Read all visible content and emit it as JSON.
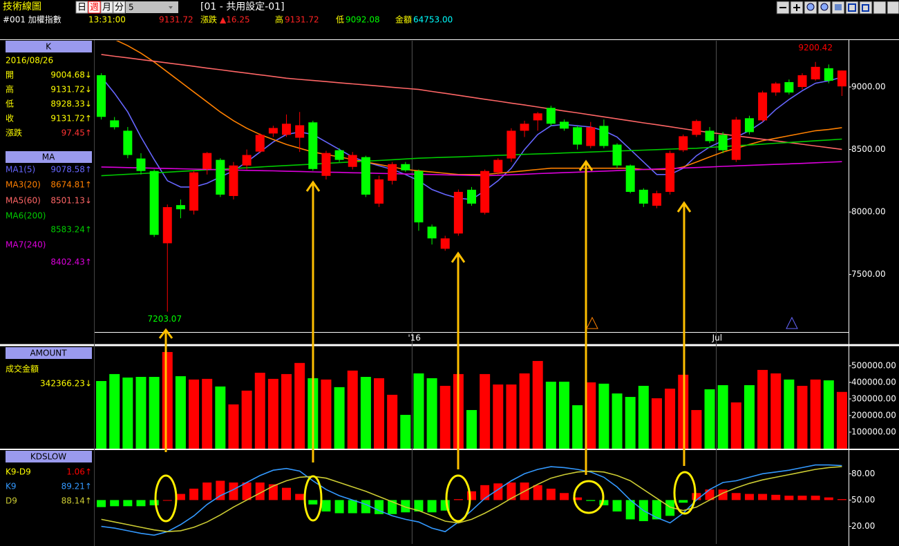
{
  "header": {
    "title": "技術線圖",
    "periods": [
      "日",
      "週",
      "月",
      "分"
    ],
    "period_count": "5",
    "layout_name": "[01 - 共用設定-01]"
  },
  "quote": {
    "symbol": "#001 加權指數",
    "time": "13:31:00",
    "price": "9131.72",
    "change_label": "漲跌",
    "change": "▲16.25",
    "high_label": "高",
    "high": "9131.72",
    "low_label": "低",
    "low": "9092.08",
    "amount_label": "金額",
    "amount": "64753.00"
  },
  "panel": {
    "k_title": "K",
    "date": "2016/08/26",
    "ohlc": [
      {
        "label": "開",
        "value": "9004.68↓"
      },
      {
        "label": "高",
        "value": "9131.72↓"
      },
      {
        "label": "低",
        "value": "8928.33↓"
      },
      {
        "label": "收",
        "value": "9131.72↑"
      },
      {
        "label": "漲跌",
        "value": "97.45↑"
      }
    ],
    "ma_title": "MA",
    "amount_title": "AMOUNT",
    "amount_label": "成交金額",
    "amount_value": "342366.23↓",
    "kd_title": "KDSLOW"
  },
  "chart_data": [
    {
      "type": "candlestick",
      "categories": [
        null,
        null,
        null,
        null,
        null,
        null,
        null,
        null,
        null,
        null,
        null,
        null,
        null,
        null,
        null,
        null,
        null,
        null,
        null,
        null,
        null,
        null,
        null,
        null,
        "'16",
        null,
        null,
        null,
        null,
        null,
        null,
        null,
        null,
        null,
        null,
        null,
        null,
        null,
        null,
        null,
        null,
        null,
        null,
        null,
        null,
        null,
        null,
        "Jul",
        null,
        null,
        null,
        null,
        null,
        null,
        null,
        null,
        null
      ],
      "open": [
        9094,
        8733,
        8650,
        8428,
        8328,
        7750,
        8055,
        8011,
        8344,
        8417,
        8128,
        8372,
        8483,
        8628,
        8617,
        8594,
        8717,
        8289,
        8494,
        8361,
        8439,
        8067,
        8250,
        8383,
        8328,
        7883,
        7706,
        7828,
        8178,
        7994,
        8317,
        8428,
        8650,
        8733,
        8833,
        8722,
        8678,
        8528,
        8689,
        8539,
        8372,
        8178,
        8050,
        8161,
        8494,
        8617,
        8650,
        8617,
        8417,
        8750,
        8733,
        8956,
        9039,
        9000,
        9061,
        9150,
        9004.68
      ],
      "high": [
        9110,
        8760,
        8680,
        8470,
        8340,
        8060,
        8100,
        8330,
        8480,
        8430,
        8400,
        8500,
        8630,
        8690,
        8780,
        8800,
        8730,
        8490,
        8510,
        8480,
        8450,
        8290,
        8400,
        8400,
        8340,
        7900,
        7810,
        8180,
        8200,
        8340,
        8430,
        8670,
        8730,
        8800,
        8850,
        8740,
        8690,
        8720,
        8740,
        8550,
        8380,
        8190,
        8170,
        8490,
        8620,
        8740,
        8680,
        8640,
        8760,
        8770,
        8970,
        9040,
        9060,
        9110,
        9200.42,
        9180,
        9131.72
      ],
      "low": [
        8740,
        8660,
        8430,
        8300,
        7800,
        7203.07,
        7950,
        7980,
        8300,
        8120,
        8100,
        8340,
        8470,
        8600,
        8600,
        8480,
        8330,
        8260,
        8400,
        8340,
        8120,
        8040,
        8220,
        8320,
        7850,
        7740,
        7690,
        7810,
        8050,
        7980,
        8300,
        8400,
        8600,
        8650,
        8690,
        8650,
        8500,
        8510,
        8510,
        8350,
        8150,
        8040,
        8030,
        8140,
        8480,
        8600,
        8550,
        8470,
        8400,
        8620,
        8720,
        8930,
        8940,
        8980,
        9050,
        9030,
        8928.33
      ],
      "close": [
        8761,
        8678,
        8456,
        8328,
        7817,
        8039,
        8022,
        8317,
        8472,
        8139,
        8372,
        8456,
        8617,
        8672,
        8706,
        8694,
        8344,
        8472,
        8417,
        8456,
        8139,
        8261,
        8383,
        8333,
        7917,
        7789,
        7789,
        8161,
        8067,
        8328,
        8417,
        8650,
        8706,
        8789,
        8706,
        8667,
        8539,
        8678,
        8528,
        8372,
        8161,
        8067,
        8150,
        8472,
        8606,
        8728,
        8567,
        8494,
        8739,
        8639,
        8956,
        9028,
        8956,
        9094,
        9161,
        9050,
        9131.72
      ],
      "up_color": "#ff0000",
      "down_color": "#00ff00",
      "high_label": "9200.42",
      "low_label": "7203.07",
      "ylim": [
        7040,
        9370
      ],
      "yticks": [
        {
          "value": 7500,
          "label": "7500.00"
        },
        {
          "value": 8000,
          "label": "8000.00"
        },
        {
          "value": 8500,
          "label": "8500.00"
        },
        {
          "value": 9000,
          "label": "9000.00"
        }
      ],
      "lines": [
        {
          "name": "MA1(5)",
          "color": "#6666ff",
          "last": "9078.58↑",
          "values": [
            9080,
            8950,
            8800,
            8600,
            8420,
            8250,
            8200,
            8200,
            8230,
            8280,
            8330,
            8400,
            8480,
            8560,
            8620,
            8640,
            8620,
            8560,
            8500,
            8440,
            8400,
            8370,
            8340,
            8300,
            8250,
            8180,
            8140,
            8110,
            8100,
            8170,
            8250,
            8350,
            8500,
            8620,
            8690,
            8700,
            8690,
            8680,
            8650,
            8600,
            8500,
            8400,
            8300,
            8300,
            8350,
            8450,
            8520,
            8570,
            8600,
            8650,
            8720,
            8820,
            8900,
            8970,
            9030,
            9050,
            9078.58
          ]
        },
        {
          "name": "MA3(20)",
          "color": "#ff8000",
          "last": "8674.81↑",
          "values": [
            9420,
            9380,
            9330,
            9270,
            9200,
            9120,
            9040,
            8960,
            8880,
            8800,
            8730,
            8670,
            8620,
            8580,
            8540,
            8510,
            8480,
            8460,
            8440,
            8420,
            8400,
            8380,
            8360,
            8340,
            8330,
            8320,
            8310,
            8300,
            8300,
            8300,
            8310,
            8320,
            8330,
            8340,
            8350,
            8350,
            8350,
            8350,
            8350,
            8350,
            8350,
            8340,
            8340,
            8340,
            8360,
            8400,
            8440,
            8480,
            8510,
            8540,
            8570,
            8590,
            8610,
            8630,
            8650,
            8660,
            8674.81
          ]
        },
        {
          "name": "MA5(60)",
          "color": "#ff6666",
          "last": "8501.13↓",
          "values": [
            9260,
            9246,
            9233,
            9219,
            9206,
            9192,
            9179,
            9165,
            9151,
            9138,
            9124,
            9111,
            9097,
            9084,
            9070,
            9061,
            9052,
            9043,
            9034,
            9025,
            9016,
            9007,
            8998,
            8989,
            8980,
            8964,
            8949,
            8933,
            8918,
            8902,
            8887,
            8871,
            8856,
            8840,
            8824,
            8808,
            8793,
            8777,
            8761,
            8745,
            8729,
            8713,
            8698,
            8682,
            8666,
            8650,
            8636,
            8623,
            8609,
            8596,
            8582,
            8569,
            8555,
            8542,
            8528,
            8515,
            8501.13
          ]
        },
        {
          "name": "MA6(200)",
          "color": "#00cc00",
          "last": "8583.24↑",
          "values": [
            8290,
            8296,
            8302,
            8307,
            8313,
            8319,
            8325,
            8331,
            8337,
            8342,
            8348,
            8354,
            8360,
            8366,
            8372,
            8377,
            8383,
            8389,
            8395,
            8401,
            8407,
            8412,
            8418,
            8424,
            8430,
            8434,
            8438,
            8441,
            8445,
            8449,
            8453,
            8457,
            8461,
            8465,
            8468,
            8472,
            8476,
            8480,
            8484,
            8488,
            8491,
            8495,
            8499,
            8503,
            8507,
            8510,
            8517,
            8523,
            8530,
            8536,
            8543,
            8550,
            8556,
            8563,
            8570,
            8576,
            8583.24
          ]
        },
        {
          "name": "MA7(240)",
          "color": "#dd00dd",
          "last": "8402.43↑",
          "values": [
            8360,
            8358,
            8355,
            8353,
            8350,
            8348,
            8346,
            8343,
            8341,
            8338,
            8336,
            8333,
            8331,
            8329,
            8326,
            8324,
            8321,
            8319,
            8317,
            8314,
            8312,
            8309,
            8307,
            8304,
            8302,
            8300,
            8297,
            8295,
            8292,
            8290,
            8294,
            8298,
            8302,
            8307,
            8311,
            8315,
            8319,
            8323,
            8327,
            8331,
            8336,
            8340,
            8344,
            8348,
            8352,
            8356,
            8360,
            8365,
            8369,
            8373,
            8377,
            8381,
            8385,
            8389,
            8394,
            8398,
            8402.43
          ]
        }
      ]
    },
    {
      "type": "bar",
      "values": [
        408000,
        450000,
        429000,
        433000,
        433000,
        583000,
        437000,
        417000,
        421000,
        375000,
        267000,
        350000,
        458000,
        421000,
        450000,
        517000,
        425000,
        417000,
        371000,
        471000,
        433000,
        425000,
        325000,
        204000,
        454000,
        425000,
        379000,
        450000,
        233000,
        450000,
        387000,
        387000,
        454000,
        529000,
        404000,
        404000,
        262000,
        400000,
        392000,
        333000,
        312000,
        379000,
        304000,
        362000,
        446000,
        233000,
        358000,
        383000,
        279000,
        383000,
        475000,
        454000,
        417000,
        379000,
        417000,
        412000,
        342366.23
      ],
      "ylim": [
        0,
        612000
      ],
      "yticks": [
        {
          "value": 100000,
          "label": "100000.00"
        },
        {
          "value": 200000,
          "label": "200000.00"
        },
        {
          "value": 300000,
          "label": "300000.00"
        },
        {
          "value": 400000,
          "label": "400000.00"
        },
        {
          "value": 500000,
          "label": "500000.00"
        }
      ]
    },
    {
      "type": "line",
      "ylim": [
        0,
        107
      ],
      "y2lim": [
        -50,
        57
      ],
      "yticks": [
        {
          "value": 20,
          "label": "20.00"
        },
        {
          "value": 50,
          "label": "50.00"
        },
        {
          "value": 80,
          "label": "80.00"
        }
      ],
      "series": [
        {
          "name": "K9-D9",
          "type": "bar",
          "axis": "y2",
          "up_color": "#ff0000",
          "down_color": "#00ff00",
          "last": "1.06↑",
          "values": [
            -8,
            -7,
            -7,
            -7,
            -6,
            0,
            7,
            13,
            20,
            22,
            20,
            20,
            20,
            18,
            14,
            7,
            -5,
            -13,
            -15,
            -15,
            -15,
            -16,
            -16,
            -14,
            -13,
            -14,
            -12,
            1,
            10,
            17,
            19,
            20,
            20,
            17,
            13,
            8,
            3,
            -1,
            -6,
            -13,
            -22,
            -24,
            -22,
            -18,
            -3,
            8,
            12,
            12,
            8,
            7,
            7,
            6,
            5,
            5,
            5,
            3,
            1.06
          ]
        },
        {
          "name": "K9",
          "color": "#3399ff",
          "last": "89.21↑",
          "values": [
            20,
            18,
            15,
            12,
            10,
            14,
            22,
            32,
            45,
            55,
            62,
            70,
            78,
            84,
            86,
            83,
            72,
            62,
            55,
            50,
            45,
            38,
            32,
            28,
            25,
            18,
            14,
            25,
            38,
            52,
            62,
            72,
            80,
            85,
            88,
            87,
            85,
            82,
            76,
            65,
            50,
            38,
            30,
            24,
            35,
            50,
            62,
            70,
            72,
            76,
            80,
            82,
            84,
            87,
            90,
            90,
            89.21
          ]
        },
        {
          "name": "D9",
          "color": "#cccc33",
          "last": "88.14↑",
          "values": [
            28,
            25,
            22,
            19,
            16,
            14,
            15,
            19,
            25,
            33,
            42,
            50,
            58,
            66,
            72,
            76,
            77,
            75,
            70,
            65,
            60,
            54,
            48,
            42,
            38,
            32,
            26,
            24,
            28,
            35,
            43,
            52,
            60,
            68,
            75,
            79,
            82,
            83,
            82,
            78,
            72,
            62,
            52,
            42,
            38,
            42,
            50,
            58,
            64,
            69,
            73,
            76,
            79,
            82,
            85,
            87,
            88.14
          ]
        }
      ]
    }
  ]
}
